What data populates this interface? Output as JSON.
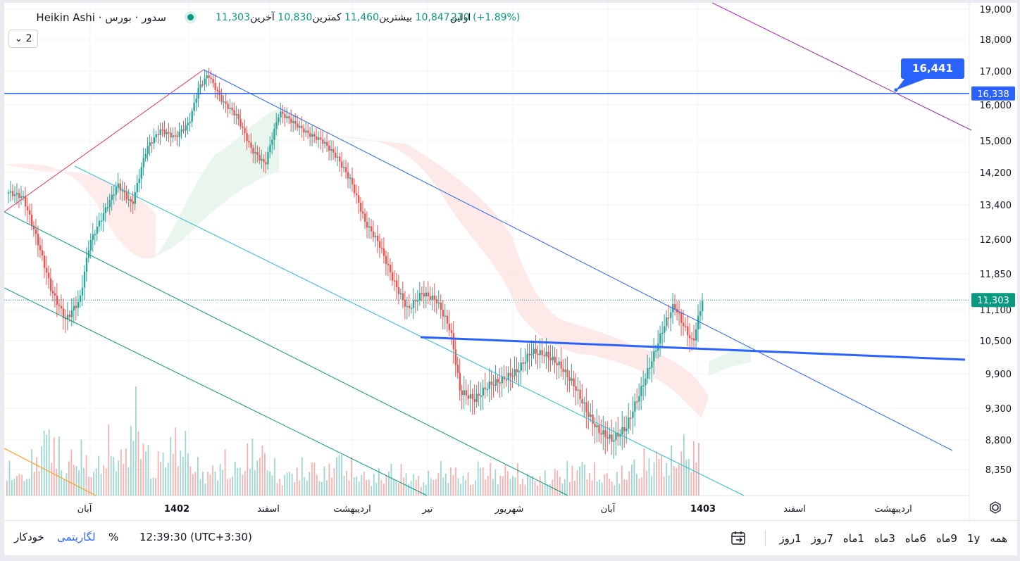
{
  "header": {
    "title": "سدور · بورس · Heikin Ashi",
    "open_label": "اولین",
    "open_value": "10,847",
    "high_label": "بیشترین",
    "high_value": "11,460",
    "low_label": "کمترین",
    "low_value": "10,830",
    "close_label": "آخرین",
    "close_value": "11,303",
    "change": "210 (+1.89%)",
    "collapse_label": "2"
  },
  "bottom_bar": {
    "ranges": [
      "همه",
      "1y",
      "9ماه",
      "6ماه",
      "3ماه",
      "1ماه",
      "7روز",
      "1روز"
    ],
    "time": "12:39:30 (UTC+3:30)",
    "percent": "%",
    "log": "لگاریتمی",
    "auto": "خودکار"
  },
  "colors": {
    "up": "#26a69a",
    "down": "#ef5350",
    "accent": "#2962ff",
    "last_price": "#089981"
  },
  "chart_data": {
    "type": "candlestick",
    "style": "Heikin Ashi",
    "y_ticks": [
      19000,
      18000,
      17000,
      16000,
      15000,
      14200,
      13400,
      12600,
      11850,
      11100,
      10500,
      9900,
      9300,
      8800,
      8350
    ],
    "y_tick_labels": [
      "19,000",
      "18,000",
      "17,000",
      "16,000",
      "15,000",
      "14,200",
      "13,400",
      "12,600",
      "11,850",
      "11,100",
      "10,500",
      "9,900",
      "9,300",
      "8,800",
      "8,350"
    ],
    "x_labels": [
      "آبان",
      "1402",
      "اسفند",
      "اردیبهشت",
      "تیر",
      "شهریور",
      "آبان",
      "1403",
      "اسفند",
      "اردیبهشت"
    ],
    "price_labels": [
      {
        "text": "16,338",
        "value": 16338,
        "color": "#2962ff"
      },
      {
        "text": "11,303",
        "value": 11303,
        "color": "#089981"
      }
    ],
    "callout": {
      "text": "16,441",
      "value": 16441
    },
    "series_close_path": [
      [
        0,
        13700
      ],
      [
        0.015,
        13600
      ],
      [
        0.03,
        12600
      ],
      [
        0.045,
        11500
      ],
      [
        0.06,
        10900
      ],
      [
        0.075,
        11300
      ],
      [
        0.085,
        12500
      ],
      [
        0.1,
        13200
      ],
      [
        0.115,
        13900
      ],
      [
        0.13,
        13400
      ],
      [
        0.145,
        14800
      ],
      [
        0.16,
        15300
      ],
      [
        0.175,
        15100
      ],
      [
        0.19,
        15500
      ],
      [
        0.2,
        16500
      ],
      [
        0.21,
        16900
      ],
      [
        0.225,
        16100
      ],
      [
        0.24,
        15700
      ],
      [
        0.255,
        14800
      ],
      [
        0.27,
        14400
      ],
      [
        0.285,
        15800
      ],
      [
        0.3,
        15500
      ],
      [
        0.315,
        15200
      ],
      [
        0.33,
        15000
      ],
      [
        0.345,
        14600
      ],
      [
        0.36,
        14000
      ],
      [
        0.375,
        13000
      ],
      [
        0.39,
        12500
      ],
      [
        0.405,
        11700
      ],
      [
        0.42,
        11100
      ],
      [
        0.435,
        11450
      ],
      [
        0.45,
        11300
      ],
      [
        0.465,
        10700
      ],
      [
        0.475,
        9600
      ],
      [
        0.49,
        9450
      ],
      [
        0.505,
        9700
      ],
      [
        0.52,
        9800
      ],
      [
        0.535,
        9950
      ],
      [
        0.55,
        10300
      ],
      [
        0.565,
        10250
      ],
      [
        0.58,
        10050
      ],
      [
        0.595,
        9700
      ],
      [
        0.61,
        9200
      ],
      [
        0.62,
        8950
      ],
      [
        0.635,
        8800
      ],
      [
        0.65,
        9000
      ],
      [
        0.665,
        9600
      ],
      [
        0.68,
        10300
      ],
      [
        0.69,
        10800
      ],
      [
        0.7,
        11200
      ],
      [
        0.71,
        10800
      ],
      [
        0.72,
        10450
      ],
      [
        0.73,
        11303
      ]
    ],
    "volume_series": [
      0.35,
      0.2,
      0.45,
      0.8,
      0.3,
      0.55,
      0.25,
      0.6,
      0.4,
      1.0,
      0.3,
      0.5,
      0.7,
      0.35,
      0.25,
      0.4,
      0.3,
      0.55,
      0.45,
      0.2,
      0.3,
      0.35,
      0.25,
      0.45,
      0.3,
      0.2,
      0.25,
      0.3,
      0.22,
      0.18,
      0.3,
      0.28,
      0.2,
      0.35,
      0.25,
      0.3,
      0.22,
      0.2,
      0.25,
      0.3,
      0.35,
      0.25,
      0.2,
      0.3,
      0.38,
      0.45,
      0.4,
      0.55,
      0.5
    ]
  }
}
